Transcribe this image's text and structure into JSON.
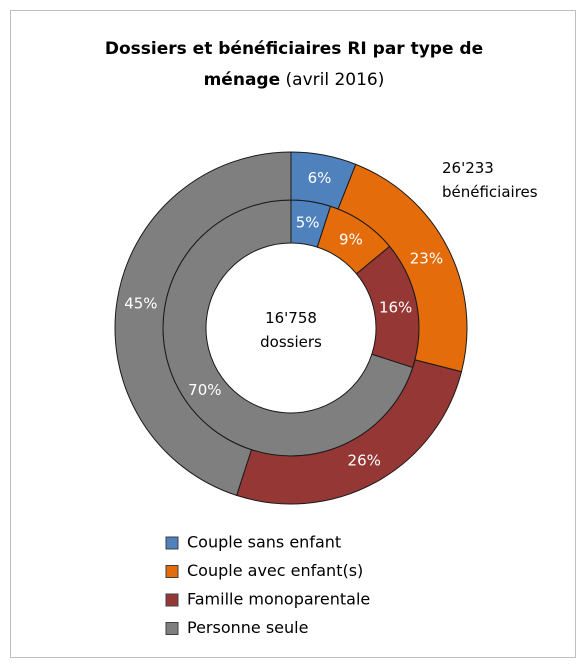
{
  "chart_data": {
    "type": "donut",
    "title": "Dossiers et bénéficiaires RI par type de ménage",
    "subtitle": "(avril 2016)",
    "categories": [
      "Couple sans enfant",
      "Couple avec enfant(s)",
      "Famille monoparentale",
      "Personne seule"
    ],
    "colors": [
      "#4f81bd",
      "#e46c0a",
      "#953735",
      "#7f7f7f"
    ],
    "series": [
      {
        "name": "16'758 dossiers",
        "ring": "inner",
        "values": [
          5,
          9,
          16,
          70
        ],
        "value_labels": [
          "5%",
          "9%",
          "16%",
          "70%"
        ]
      },
      {
        "name": "26'233 bénéficiaires",
        "ring": "outer",
        "values": [
          6,
          23,
          26,
          45
        ],
        "value_labels": [
          "6%",
          "23%",
          "26%",
          "45%"
        ]
      }
    ],
    "legend": "bottom"
  }
}
